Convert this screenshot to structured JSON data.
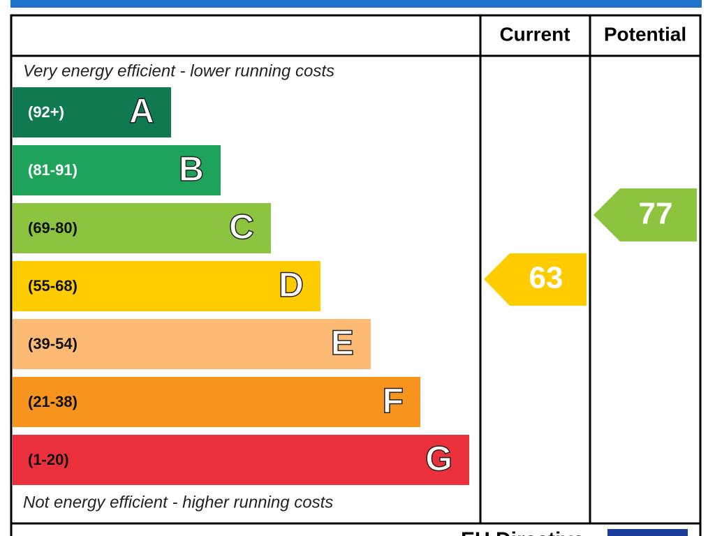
{
  "header": {
    "columns": [
      "Current",
      "Potential"
    ]
  },
  "top_note": "Very energy efficient - lower running costs",
  "bands": [
    {
      "range": "(92+)",
      "letter": "A"
    },
    {
      "range": "(81-91)",
      "letter": "B"
    },
    {
      "range": "(69-80)",
      "letter": "C"
    },
    {
      "range": "(55-68)",
      "letter": "D"
    },
    {
      "range": "(39-54)",
      "letter": "E"
    },
    {
      "range": "(21-38)",
      "letter": "F"
    },
    {
      "range": "(1-20)",
      "letter": "G"
    }
  ],
  "bottom_note": "Not energy efficient - higher running costs",
  "current": "63",
  "potential": "77",
  "footer": "EU Directive"
}
